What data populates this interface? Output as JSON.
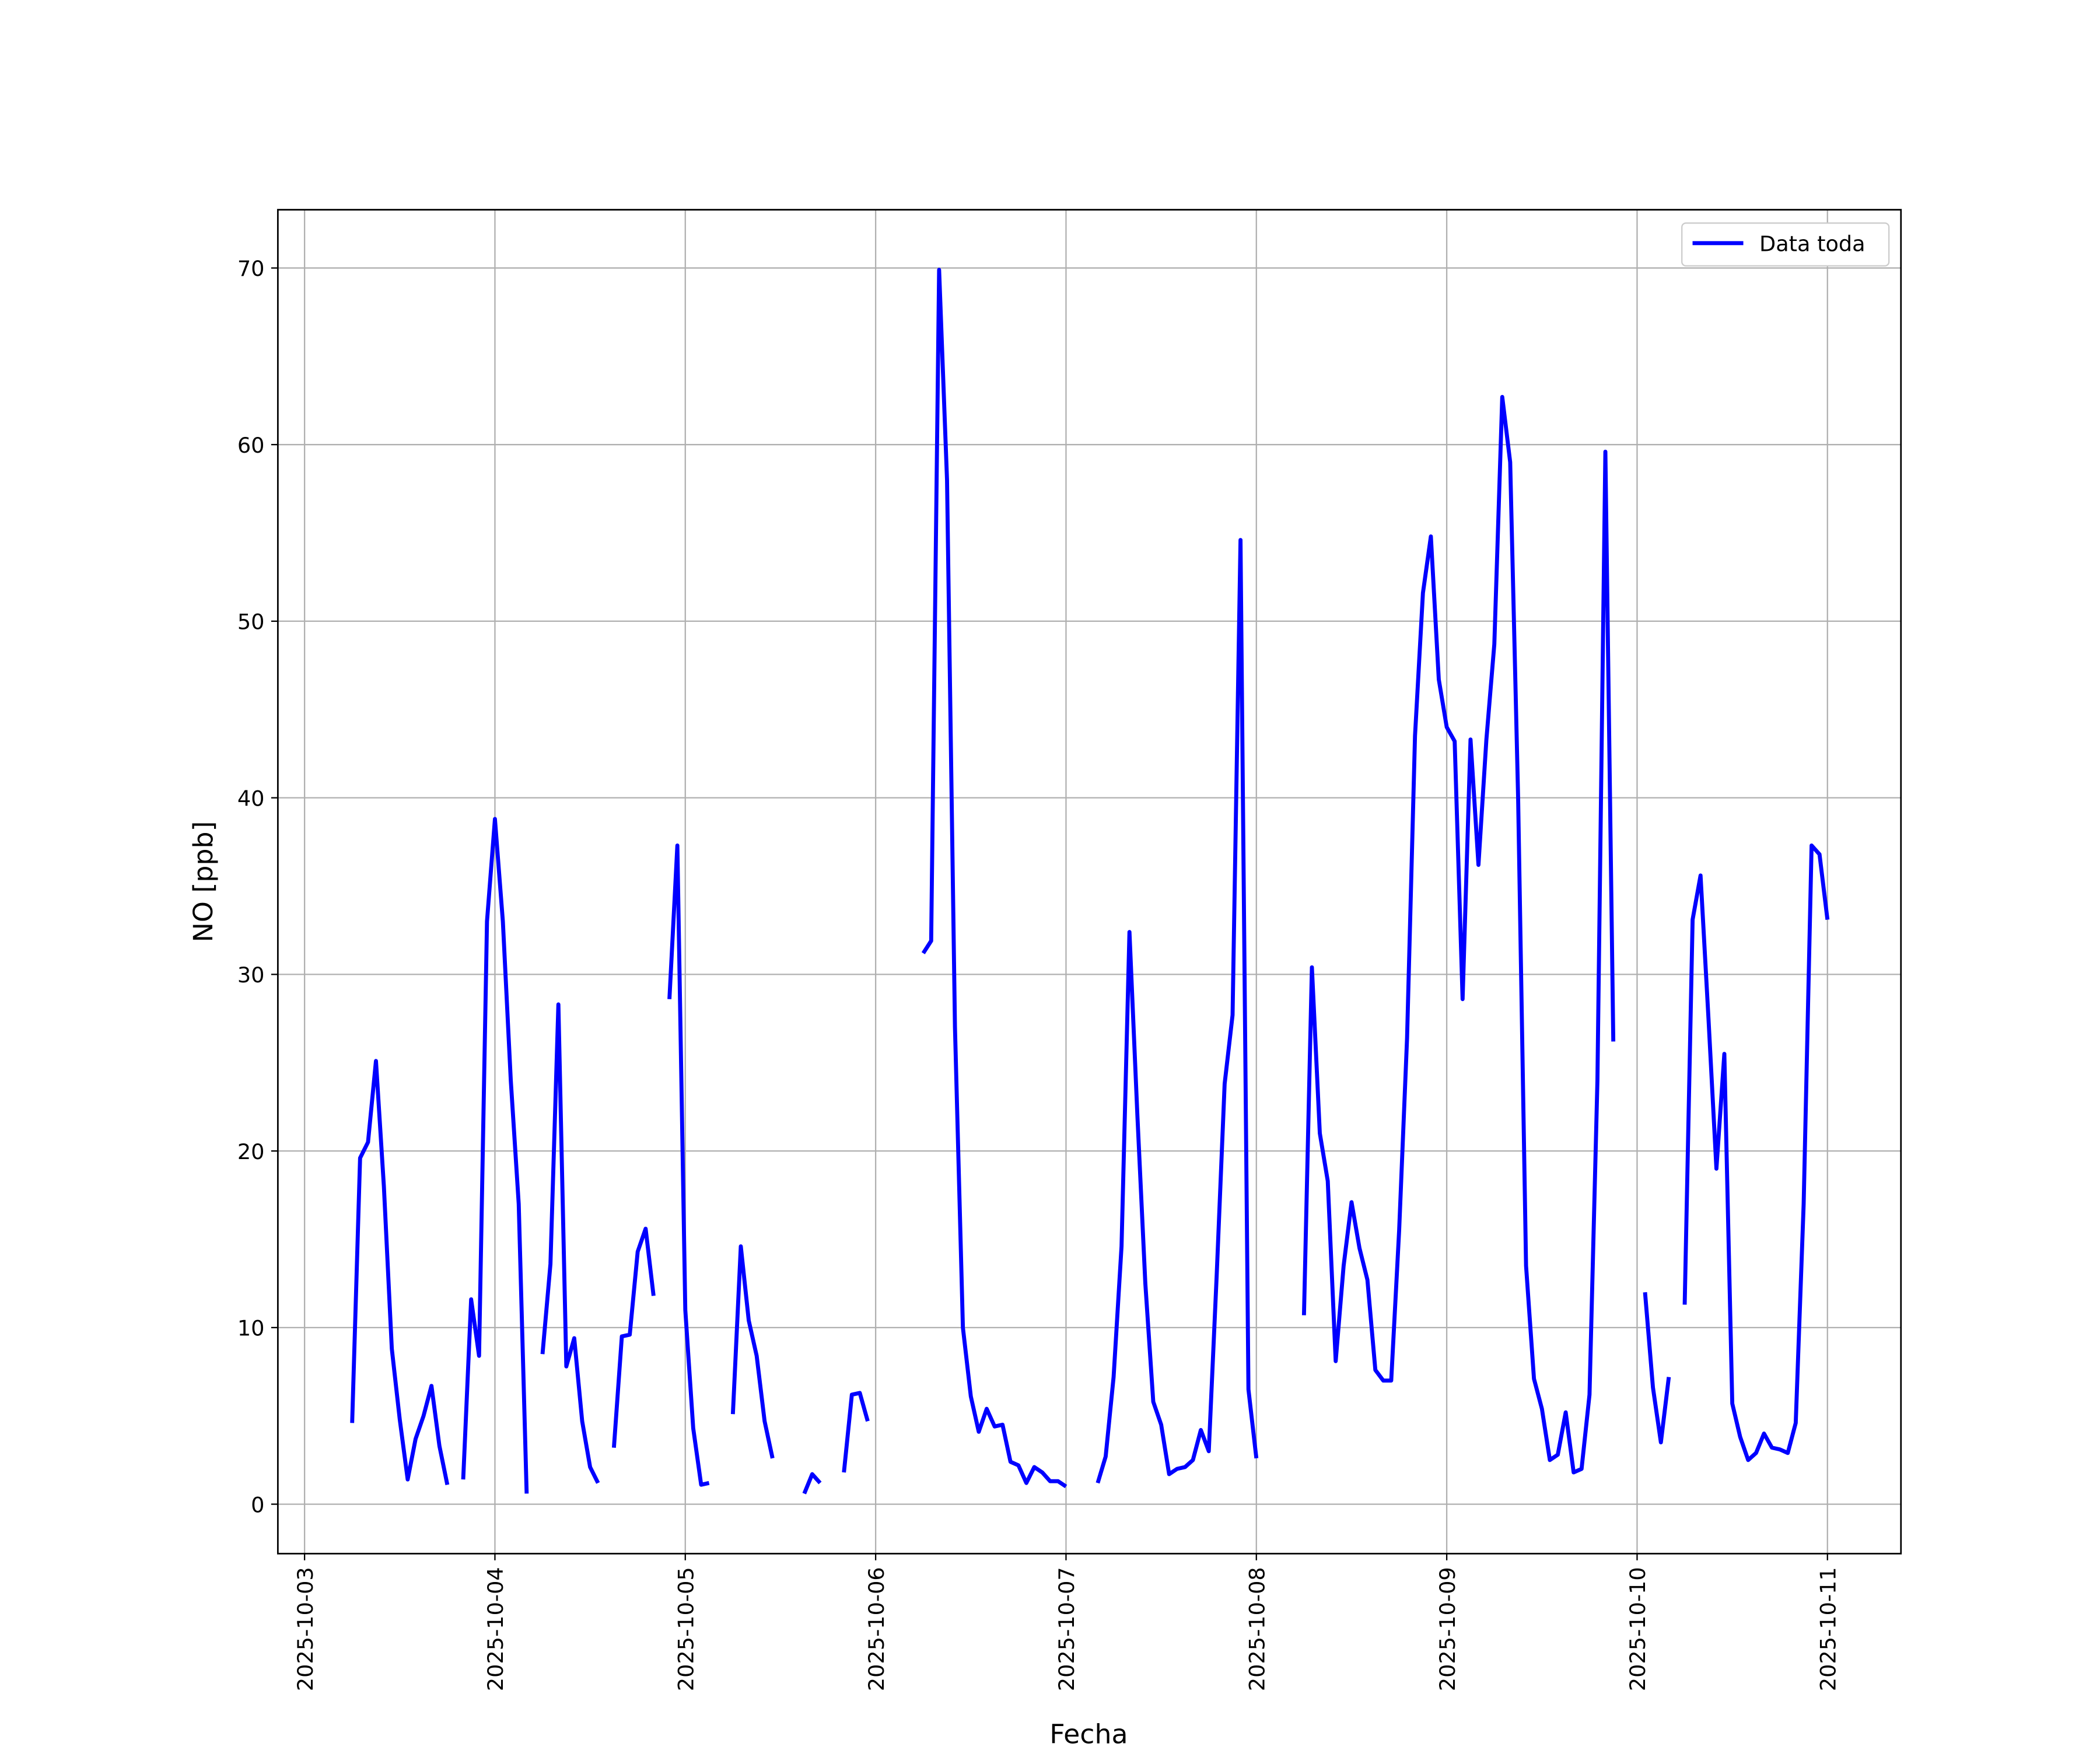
{
  "chart_data": {
    "type": "line",
    "xlabel": "Fecha",
    "ylabel": "NO [ppb]",
    "x": [
      "2025-10-03 06:00",
      "2025-10-03 07:00",
      "2025-10-03 08:00",
      "2025-10-03 09:00",
      "2025-10-03 10:00",
      "2025-10-03 11:00",
      "2025-10-03 12:00",
      "2025-10-03 13:00",
      "2025-10-03 14:00",
      "2025-10-03 15:00",
      "2025-10-03 16:00",
      "2025-10-03 17:00",
      "2025-10-03 18:00",
      "2025-10-03 19:00",
      "2025-10-03 20:00",
      "2025-10-03 21:00",
      "2025-10-03 22:00",
      "2025-10-03 23:00",
      "2025-10-04 00:00",
      "2025-10-04 01:00",
      "2025-10-04 02:00",
      "2025-10-04 03:00",
      "2025-10-04 04:00",
      "2025-10-04 05:00",
      "2025-10-04 06:00",
      "2025-10-04 07:00",
      "2025-10-04 08:00",
      "2025-10-04 09:00",
      "2025-10-04 10:00",
      "2025-10-04 11:00",
      "2025-10-04 12:00",
      "2025-10-04 13:00",
      "2025-10-04 14:00",
      "2025-10-04 15:00",
      "2025-10-04 16:00",
      "2025-10-04 17:00",
      "2025-10-04 18:00",
      "2025-10-04 19:00",
      "2025-10-04 20:00",
      "2025-10-04 21:00",
      "2025-10-04 22:00",
      "2025-10-04 23:00",
      "2025-10-05 00:00",
      "2025-10-05 01:00",
      "2025-10-05 02:00",
      "2025-10-05 03:00",
      "2025-10-05 04:00",
      "2025-10-05 05:00",
      "2025-10-05 06:00",
      "2025-10-05 07:00",
      "2025-10-05 08:00",
      "2025-10-05 09:00",
      "2025-10-05 10:00",
      "2025-10-05 11:00",
      "2025-10-05 12:00",
      "2025-10-05 13:00",
      "2025-10-05 14:00",
      "2025-10-05 15:00",
      "2025-10-05 16:00",
      "2025-10-05 17:00",
      "2025-10-05 18:00",
      "2025-10-05 19:00",
      "2025-10-05 20:00",
      "2025-10-05 21:00",
      "2025-10-05 22:00",
      "2025-10-05 23:00",
      "2025-10-06 00:00",
      "2025-10-06 01:00",
      "2025-10-06 02:00",
      "2025-10-06 03:00",
      "2025-10-06 04:00",
      "2025-10-06 05:00",
      "2025-10-06 06:00",
      "2025-10-06 07:00",
      "2025-10-06 08:00",
      "2025-10-06 09:00",
      "2025-10-06 10:00",
      "2025-10-06 11:00",
      "2025-10-06 12:00",
      "2025-10-06 13:00",
      "2025-10-06 14:00",
      "2025-10-06 15:00",
      "2025-10-06 16:00",
      "2025-10-06 17:00",
      "2025-10-06 18:00",
      "2025-10-06 19:00",
      "2025-10-06 20:00",
      "2025-10-06 21:00",
      "2025-10-06 22:00",
      "2025-10-06 23:00",
      "2025-10-07 00:00",
      "2025-10-07 01:00",
      "2025-10-07 02:00",
      "2025-10-07 03:00",
      "2025-10-07 04:00",
      "2025-10-07 05:00",
      "2025-10-07 06:00",
      "2025-10-07 07:00",
      "2025-10-07 08:00",
      "2025-10-07 09:00",
      "2025-10-07 10:00",
      "2025-10-07 11:00",
      "2025-10-07 12:00",
      "2025-10-07 13:00",
      "2025-10-07 14:00",
      "2025-10-07 15:00",
      "2025-10-07 16:00",
      "2025-10-07 17:00",
      "2025-10-07 18:00",
      "2025-10-07 19:00",
      "2025-10-07 20:00",
      "2025-10-07 21:00",
      "2025-10-07 22:00",
      "2025-10-07 23:00",
      "2025-10-08 00:00",
      "2025-10-08 01:00",
      "2025-10-08 02:00",
      "2025-10-08 03:00",
      "2025-10-08 04:00",
      "2025-10-08 05:00",
      "2025-10-08 06:00",
      "2025-10-08 07:00",
      "2025-10-08 08:00",
      "2025-10-08 09:00",
      "2025-10-08 10:00",
      "2025-10-08 11:00",
      "2025-10-08 12:00",
      "2025-10-08 13:00",
      "2025-10-08 14:00",
      "2025-10-08 15:00",
      "2025-10-08 16:00",
      "2025-10-08 17:00",
      "2025-10-08 18:00",
      "2025-10-08 19:00",
      "2025-10-08 20:00",
      "2025-10-08 21:00",
      "2025-10-08 22:00",
      "2025-10-08 23:00",
      "2025-10-09 00:00",
      "2025-10-09 01:00",
      "2025-10-09 02:00",
      "2025-10-09 03:00",
      "2025-10-09 04:00",
      "2025-10-09 05:00",
      "2025-10-09 06:00",
      "2025-10-09 07:00",
      "2025-10-09 08:00",
      "2025-10-09 09:00",
      "2025-10-09 10:00",
      "2025-10-09 11:00",
      "2025-10-09 12:00",
      "2025-10-09 13:00",
      "2025-10-09 14:00",
      "2025-10-09 15:00",
      "2025-10-09 16:00",
      "2025-10-09 17:00",
      "2025-10-09 18:00",
      "2025-10-09 19:00",
      "2025-10-09 20:00",
      "2025-10-09 21:00",
      "2025-10-09 22:00",
      "2025-10-09 23:00",
      "2025-10-10 00:00",
      "2025-10-10 01:00",
      "2025-10-10 02:00",
      "2025-10-10 03:00",
      "2025-10-10 04:00",
      "2025-10-10 05:00",
      "2025-10-10 06:00",
      "2025-10-10 07:00",
      "2025-10-10 08:00",
      "2025-10-10 09:00",
      "2025-10-10 10:00",
      "2025-10-10 11:00",
      "2025-10-10 12:00",
      "2025-10-10 13:00",
      "2025-10-10 14:00",
      "2025-10-10 15:00",
      "2025-10-10 16:00",
      "2025-10-10 17:00",
      "2025-10-10 18:00",
      "2025-10-10 19:00",
      "2025-10-10 20:00",
      "2025-10-10 21:00",
      "2025-10-10 22:00",
      "2025-10-10 23:00",
      "2025-10-11 00:00"
    ],
    "series": [
      {
        "name": "Data toda",
        "color": "#0000ff",
        "values": [
          4.6,
          19.6,
          20.5,
          25.1,
          18,
          8.8,
          4.8,
          1.4,
          3.7,
          5,
          6.7,
          3.3,
          1.1,
          null,
          1.4,
          11.6,
          8.4,
          33,
          38.8,
          33,
          24,
          17,
          0.6,
          null,
          8.5,
          13.6,
          28.3,
          7.8,
          9.4,
          4.7,
          2.1,
          1.2,
          null,
          3.2,
          9.5,
          9.6,
          14.3,
          15.6,
          11.8,
          null,
          28.6,
          37.3,
          11,
          4.3,
          1.1,
          1.2,
          null,
          null,
          5.1,
          14.6,
          10.4,
          8.4,
          4.7,
          2.6,
          null,
          null,
          null,
          0.6,
          1.7,
          1.2,
          null,
          null,
          1.8,
          6.2,
          6.3,
          4.7,
          null,
          null,
          null,
          null,
          null,
          null,
          31.2,
          31.9,
          69.9,
          58,
          27,
          10,
          6.1,
          4.1,
          5.4,
          4.4,
          4.5,
          2.4,
          2.2,
          1.2,
          2.1,
          1.8,
          1.3,
          1.3,
          1.0,
          null,
          null,
          null,
          1.2,
          2.7,
          7.2,
          14.6,
          32.4,
          22,
          12.5,
          5.8,
          4.5,
          1.7,
          2.0,
          2.1,
          2.5,
          4.2,
          3.0,
          13,
          23.8,
          27.7,
          54.6,
          6.5,
          2.6,
          null,
          null,
          null,
          null,
          null,
          10.7,
          30.4,
          21,
          18.3,
          8.1,
          13.5,
          17.1,
          14.5,
          12.7,
          7.6,
          7.0,
          7.0,
          15.5,
          26.4,
          43.5,
          51.6,
          54.8,
          46.7,
          44,
          43.2,
          28.6,
          43.3,
          36.2,
          43.3,
          48.7,
          62.7,
          59,
          40,
          13.5,
          7.1,
          5.4,
          2.5,
          2.8,
          5.2,
          1.8,
          2.0,
          6.2,
          24,
          59.6,
          26.2,
          null,
          null,
          null,
          12,
          6.6,
          3.5,
          7.2,
          null,
          11.3,
          33.1,
          35.6,
          27.5,
          19,
          25.5,
          5.7,
          3.8,
          2.5,
          2.9,
          4.0,
          3.2,
          3.1,
          2.9,
          4.6,
          17,
          37.3,
          36.8,
          33.1
        ]
      }
    ],
    "xlim": [
      "2025-10-02 20:38",
      "2025-10-11 09:16"
    ],
    "xticks": [
      "2025-10-03",
      "2025-10-04",
      "2025-10-05",
      "2025-10-06",
      "2025-10-07",
      "2025-10-08",
      "2025-10-09",
      "2025-10-10",
      "2025-10-11"
    ],
    "ylim": [
      -2.8,
      73.3
    ],
    "yticks": [
      0,
      10,
      20,
      30,
      40,
      50,
      60,
      70
    ],
    "grid": true,
    "legend": "upper right"
  }
}
